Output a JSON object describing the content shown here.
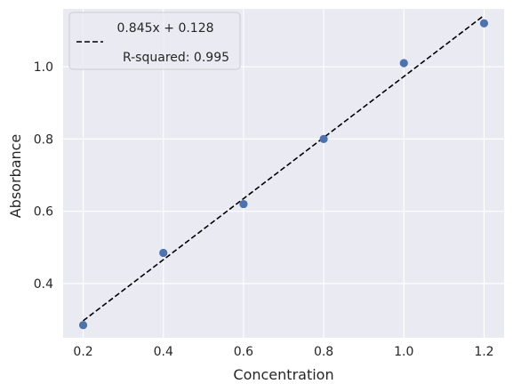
{
  "chart_data": {
    "type": "scatter",
    "title": "",
    "xlabel": "Concentration",
    "ylabel": "Absorbance",
    "xlim": [
      0.15,
      1.25
    ],
    "ylim": [
      0.25,
      1.16
    ],
    "xticks": [
      0.2,
      0.4,
      0.6,
      0.8,
      1.0,
      1.2
    ],
    "xtick_labels": [
      "0.2",
      "0.4",
      "0.6",
      "0.8",
      "1.0",
      "1.2"
    ],
    "yticks": [
      0.4,
      0.6,
      0.8,
      1.0
    ],
    "ytick_labels": [
      "0.4",
      "0.6",
      "0.8",
      "1.0"
    ],
    "grid": true,
    "legend_position": "top-left",
    "points": {
      "x": [
        0.2,
        0.4,
        0.6,
        0.8,
        1.0,
        1.2
      ],
      "y": [
        0.285,
        0.485,
        0.62,
        0.8,
        1.01,
        1.12
      ],
      "color": "#4c72b0"
    },
    "fit_line": {
      "slope": 0.845,
      "intercept": 0.128,
      "x_range": [
        0.2,
        1.2
      ],
      "color": "#000000",
      "style": "dashed"
    },
    "legend": {
      "equation": "0.845x + 0.128",
      "r_squared": "R-squared: 0.995"
    },
    "colors": {
      "plot_background": "#eaeaf2",
      "grid": "#ffffff"
    }
  }
}
